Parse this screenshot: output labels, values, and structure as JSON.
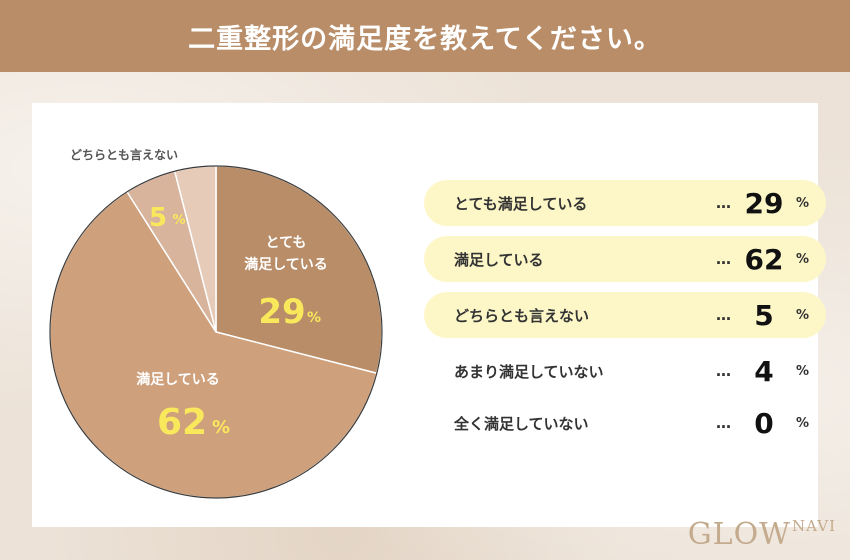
{
  "header": {
    "title": "二重整形の満足度を教えてください。"
  },
  "chart_data": {
    "type": "pie",
    "title": "二重整形の満足度を教えてください。",
    "slices": [
      {
        "name": "とても満足している",
        "value": 29,
        "color": "#b88d68"
      },
      {
        "name": "満足している",
        "value": 62,
        "color": "#cfa07c"
      },
      {
        "name": "どちらとも言えない",
        "value": 5,
        "color": "#d7b49b"
      },
      {
        "name": "あまり満足していない",
        "value": 4,
        "color": "#e6cbb8"
      },
      {
        "name": "全く満足していない",
        "value": 0,
        "color": "#f2e2d6"
      }
    ],
    "pie_labels": {
      "very_satisfied_line1": "とても",
      "very_satisfied_line2": "満足している",
      "very_satisfied_value": "29",
      "satisfied": "満足している",
      "satisfied_value": "62",
      "neutral_callout": "どちらとも言えない",
      "neutral_value": "5",
      "percent_sign": "%"
    },
    "label_color": "#f9e85c"
  },
  "list": {
    "dots": "…",
    "percent_sign": "%",
    "rows": [
      {
        "label": "とても満足している",
        "value": "29",
        "highlight": true
      },
      {
        "label": "満足している",
        "value": "62",
        "highlight": true
      },
      {
        "label": "どちらとも言えない",
        "value": "5",
        "highlight": true
      },
      {
        "label": "あまり満足していない",
        "value": "4",
        "highlight": false
      },
      {
        "label": "全く満足していない",
        "value": "0",
        "highlight": false
      }
    ]
  },
  "logo": {
    "main": "GLOW",
    "small": "NAVI"
  }
}
